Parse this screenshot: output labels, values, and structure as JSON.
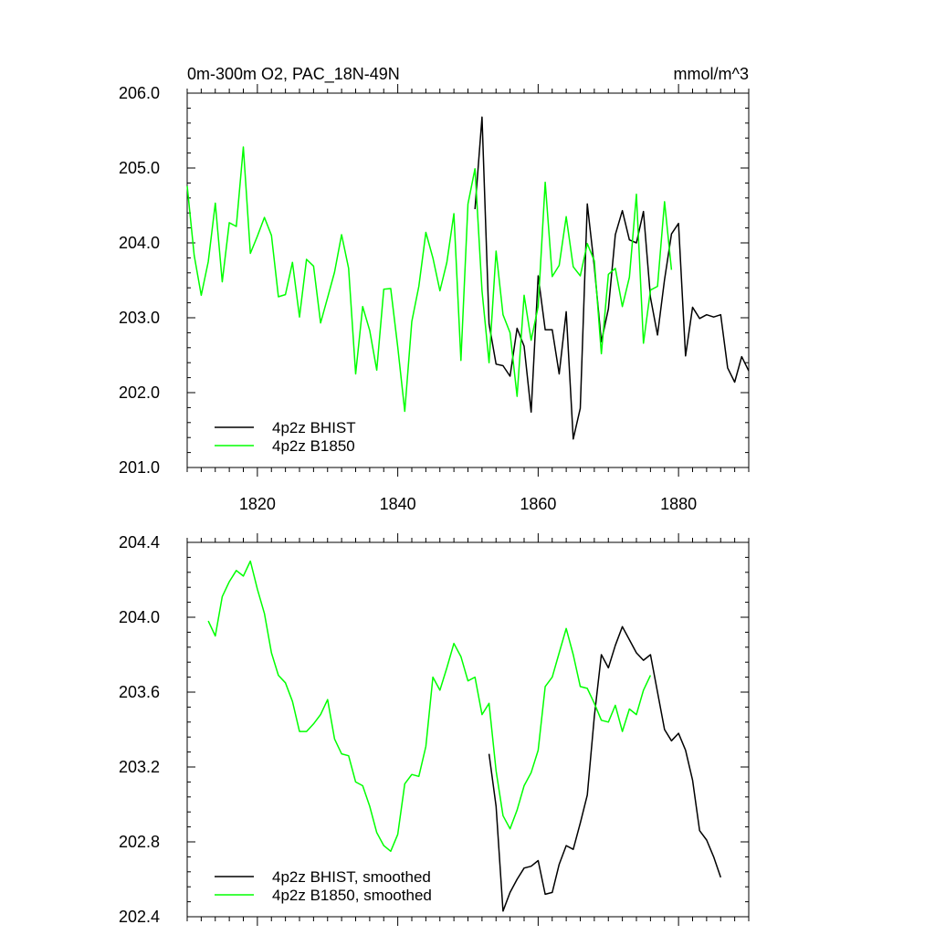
{
  "chart_data": [
    {
      "type": "line",
      "title": "0m-300m O2, PAC_18N-49N",
      "units": "mmol/m^3",
      "xlabel": "",
      "ylabel": "",
      "xlim": [
        1810,
        1890
      ],
      "ylim": [
        201.0,
        206.0
      ],
      "xticks": [
        1820,
        1840,
        1860,
        1880
      ],
      "xtick_labels": [
        "1820",
        "1840",
        "1860",
        "1880"
      ],
      "yticks": [
        201.0,
        202.0,
        203.0,
        204.0,
        205.0,
        206.0
      ],
      "ytick_labels": [
        "201.0",
        "202.0",
        "203.0",
        "204.0",
        "205.0",
        "206.0"
      ],
      "legend_position": "bottom-left",
      "series": [
        {
          "name": "4p2z BHIST",
          "color": "#000000",
          "x_start": 1851,
          "values": [
            204.45,
            205.68,
            202.92,
            202.38,
            202.36,
            202.22,
            202.86,
            202.62,
            201.74,
            203.56,
            202.84,
            202.84,
            202.25,
            203.08,
            201.38,
            201.79,
            204.52,
            203.68,
            202.68,
            203.12,
            204.11,
            204.43,
            204.04,
            204.0,
            204.42,
            203.27,
            202.77,
            203.51,
            204.12,
            204.26,
            202.49,
            203.14,
            202.99,
            203.04,
            203.01,
            203.04,
            202.33,
            202.14,
            202.48,
            202.29
          ]
        },
        {
          "name": "4p2z B1850",
          "color": "#00ff00",
          "x_start": 1810,
          "values": [
            204.76,
            203.83,
            203.3,
            203.75,
            204.53,
            203.48,
            204.27,
            204.22,
            205.28,
            203.86,
            204.09,
            204.34,
            204.1,
            203.28,
            203.31,
            203.74,
            203.01,
            203.78,
            203.69,
            202.93,
            203.27,
            203.61,
            204.11,
            203.66,
            202.25,
            203.15,
            202.83,
            202.3,
            203.38,
            203.39,
            202.61,
            201.75,
            202.95,
            203.42,
            204.14,
            203.8,
            203.36,
            203.74,
            204.39,
            202.43,
            204.52,
            204.99,
            203.36,
            202.4,
            203.89,
            203.04,
            202.8,
            201.95,
            203.3,
            202.7,
            203.15,
            204.81,
            203.55,
            203.7,
            204.35,
            203.68,
            203.56,
            203.99,
            203.76,
            202.52,
            203.58,
            203.66,
            203.15,
            203.54,
            204.65,
            202.66,
            203.37,
            203.42,
            204.55,
            203.64
          ]
        }
      ]
    },
    {
      "type": "line",
      "title": "",
      "xlabel": "",
      "ylabel": "",
      "xlim": [
        1810,
        1890
      ],
      "ylim": [
        202.4,
        204.4
      ],
      "xticks": [
        1820,
        1840,
        1860,
        1880
      ],
      "xtick_labels": [],
      "yticks": [
        202.4,
        202.8,
        203.2,
        203.6,
        204.0,
        204.4
      ],
      "ytick_labels": [
        "202.4",
        "202.8",
        "203.2",
        "203.6",
        "204.0",
        "204.4"
      ],
      "legend_position": "bottom-left",
      "series": [
        {
          "name": "4p2z BHIST, smoothed",
          "color": "#000000",
          "x_start": 1853,
          "values": [
            203.27,
            202.99,
            202.43,
            202.53,
            202.6,
            202.66,
            202.67,
            202.7,
            202.52,
            202.53,
            202.68,
            202.78,
            202.76,
            202.9,
            203.05,
            203.47,
            203.8,
            203.73,
            203.85,
            203.95,
            203.88,
            203.81,
            203.77,
            203.8,
            203.6,
            203.4,
            203.34,
            203.38,
            203.29,
            203.13,
            202.86,
            202.81,
            202.72,
            202.61
          ]
        },
        {
          "name": "4p2z B1850, smoothed",
          "color": "#00ff00",
          "x_start": 1813,
          "values": [
            203.98,
            203.9,
            204.11,
            204.19,
            204.25,
            204.22,
            204.3,
            204.15,
            204.02,
            203.81,
            203.69,
            203.65,
            203.55,
            203.39,
            203.39,
            203.43,
            203.48,
            203.56,
            203.35,
            203.27,
            203.26,
            203.12,
            203.1,
            202.99,
            202.85,
            202.78,
            202.75,
            202.84,
            203.11,
            203.16,
            203.15,
            203.31,
            203.68,
            203.61,
            203.73,
            203.86,
            203.79,
            203.66,
            203.68,
            203.48,
            203.54,
            203.18,
            202.94,
            202.87,
            202.97,
            203.1,
            203.17,
            203.29,
            203.63,
            203.68,
            203.81,
            203.94,
            203.8,
            203.63,
            203.62,
            203.54,
            203.45,
            203.44,
            203.53,
            203.39,
            203.51,
            203.48,
            203.61,
            203.69
          ]
        }
      ]
    }
  ]
}
